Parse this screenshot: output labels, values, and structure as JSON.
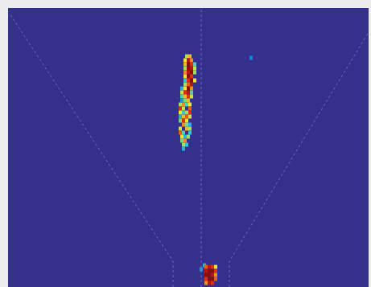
{
  "chart_data": {
    "type": "heatmap",
    "xlim": [
      -240,
      208
    ],
    "ylim": [
      0,
      347
    ],
    "tick_labels": false,
    "grid": false,
    "color_range": [
      0,
      1
    ],
    "cell_size": [
      4,
      5
    ],
    "cells": [
      [
        -18,
        287,
        0.6
      ],
      [
        -14,
        287,
        0.75
      ],
      [
        -20,
        282,
        0.7
      ],
      [
        -16,
        282,
        0.95
      ],
      [
        -12,
        282,
        0.8
      ],
      [
        -20,
        277,
        0.75
      ],
      [
        -16,
        277,
        1
      ],
      [
        -12,
        277,
        0.9
      ],
      [
        -8,
        277,
        0.5
      ],
      [
        -20,
        272,
        0.6
      ],
      [
        -16,
        272,
        1
      ],
      [
        -12,
        272,
        0.95
      ],
      [
        -8,
        272,
        0.65
      ],
      [
        -20,
        267,
        0.8
      ],
      [
        -16,
        267,
        0.95
      ],
      [
        -12,
        267,
        1
      ],
      [
        -8,
        267,
        0.6
      ],
      [
        -20,
        262,
        0.7
      ],
      [
        -16,
        262,
        1
      ],
      [
        -12,
        262,
        0.9
      ],
      [
        -20,
        257,
        0.45
      ],
      [
        -16,
        257,
        0.9
      ],
      [
        -12,
        257,
        1
      ],
      [
        -8,
        257,
        0.7
      ],
      [
        -20,
        252,
        0.6
      ],
      [
        -16,
        252,
        0.85
      ],
      [
        -12,
        252,
        0.95
      ],
      [
        -24,
        247,
        0.4
      ],
      [
        -20,
        247,
        0.7
      ],
      [
        -16,
        247,
        1
      ],
      [
        -12,
        247,
        0.8
      ],
      [
        -24,
        242,
        0.65
      ],
      [
        -20,
        242,
        0.9
      ],
      [
        -16,
        242,
        0.95
      ],
      [
        -12,
        242,
        0.5
      ],
      [
        -24,
        237,
        0.5
      ],
      [
        -20,
        237,
        0.75
      ],
      [
        -16,
        237,
        0.9
      ],
      [
        -12,
        237,
        0.65
      ],
      [
        -24,
        232,
        0.35
      ],
      [
        -20,
        232,
        0.55
      ],
      [
        -16,
        232,
        0.75
      ],
      [
        -26,
        227,
        0.6
      ],
      [
        -22,
        227,
        0.8
      ],
      [
        -18,
        227,
        0.5
      ],
      [
        -14,
        227,
        0.7
      ],
      [
        -26,
        222,
        0.9
      ],
      [
        -22,
        222,
        0.65
      ],
      [
        -14,
        222,
        0.85
      ],
      [
        -26,
        217,
        0.7
      ],
      [
        -22,
        217,
        0.45
      ],
      [
        -18,
        217,
        0.6
      ],
      [
        -14,
        217,
        0.9
      ],
      [
        -26,
        212,
        0.4
      ],
      [
        -22,
        212,
        0.75
      ],
      [
        -18,
        212,
        0.85
      ],
      [
        -14,
        212,
        0.65
      ],
      [
        -26,
        207,
        0.55
      ],
      [
        -22,
        207,
        0.9
      ],
      [
        -18,
        207,
        0.7
      ],
      [
        -22,
        202,
        0.8
      ],
      [
        -18,
        202,
        0.55
      ],
      [
        -14,
        202,
        0.4
      ],
      [
        -26,
        197,
        0.65
      ],
      [
        -18,
        197,
        0.75
      ],
      [
        -14,
        197,
        0.6
      ],
      [
        -26,
        192,
        0.85
      ],
      [
        -22,
        192,
        0.5
      ],
      [
        -14,
        192,
        0.45
      ],
      [
        -24,
        187,
        0.7
      ],
      [
        -20,
        187,
        0.4
      ],
      [
        -16,
        187,
        0.6
      ],
      [
        -24,
        182,
        0.55
      ],
      [
        -20,
        182,
        0.8
      ],
      [
        -22,
        177,
        0.6
      ],
      [
        -18,
        177,
        0.45
      ],
      [
        -22,
        172,
        0.4
      ],
      [
        62,
        285,
        0.3
      ],
      [
        4,
        27,
        0.4
      ],
      [
        0,
        22,
        0.35
      ],
      [
        6,
        25,
        0.85
      ],
      [
        10,
        25,
        0.95
      ],
      [
        14,
        25,
        0.9
      ],
      [
        18,
        25,
        0.7
      ],
      [
        6,
        20,
        0.95
      ],
      [
        10,
        20,
        1
      ],
      [
        14,
        20,
        1
      ],
      [
        18,
        20,
        0.9
      ],
      [
        6,
        15,
        1
      ],
      [
        10,
        15,
        1
      ],
      [
        14,
        15,
        0.95
      ],
      [
        18,
        15,
        0.8
      ],
      [
        6,
        10,
        0.9
      ],
      [
        10,
        10,
        1
      ],
      [
        14,
        10,
        1
      ],
      [
        18,
        10,
        0.85
      ],
      [
        6,
        5,
        0.8
      ],
      [
        10,
        5,
        0.95
      ],
      [
        14,
        5,
        0.9
      ]
    ]
  }
}
